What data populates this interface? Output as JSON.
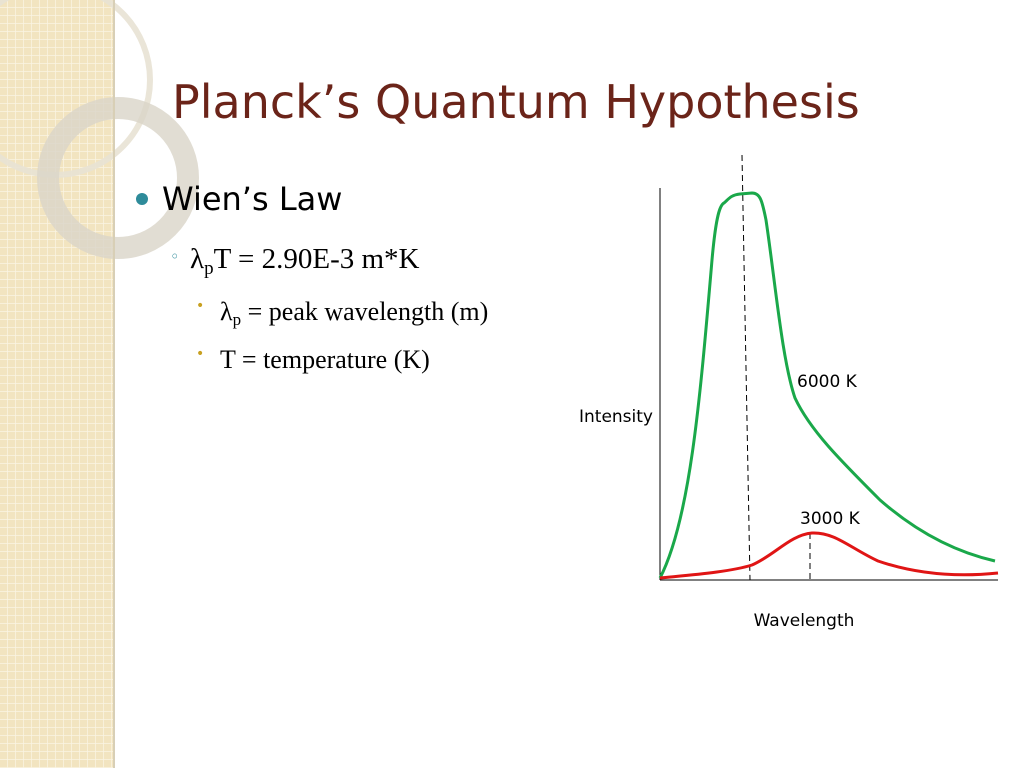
{
  "header": {
    "title": "Planck’s Quantum Hypothesis"
  },
  "bullets": [
    {
      "text": "Wien’s Law",
      "children": [
        {
          "parts": [
            "λ",
            "p",
            "T = 2.90E-3 m*K"
          ],
          "children": [
            {
              "parts": [
                "λ",
                "p",
                " = peak wavelength (m)"
              ]
            },
            {
              "parts": [
                "T = temperature (K)"
              ]
            }
          ]
        }
      ]
    }
  ],
  "diagram": {
    "curve_labels": [
      "6000 K",
      "3000 K"
    ],
    "y_label": "Intensity",
    "x_label": "Wavelength"
  }
}
